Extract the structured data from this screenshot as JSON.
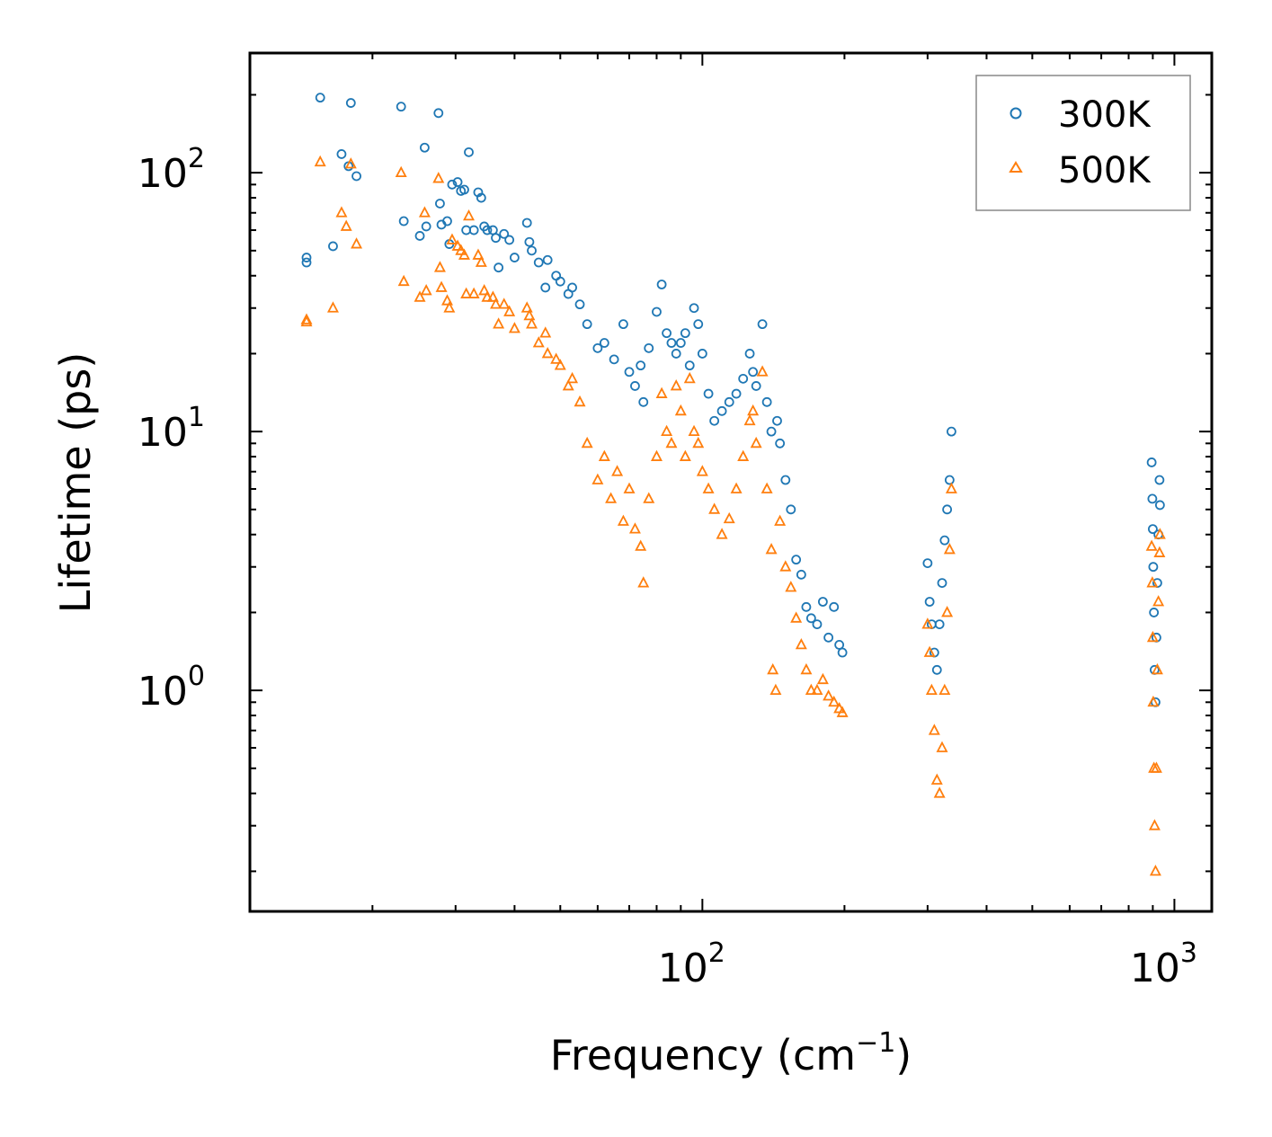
{
  "chart_data": {
    "type": "scatter",
    "title": "",
    "xlabel": "Frequency (cm",
    "xlabel_sup": "−1",
    "xlabel_suffix": ")",
    "ylabel": "Lifetime (ps)",
    "xscale": "log",
    "yscale": "log",
    "xlim": [
      11,
      1200
    ],
    "ylim": [
      0.14,
      290
    ],
    "x_major_ticks": [
      {
        "value": 100,
        "base": "10",
        "exp": "2"
      },
      {
        "value": 1000,
        "base": "10",
        "exp": "3"
      }
    ],
    "y_major_ticks": [
      {
        "value": 1,
        "base": "10",
        "exp": "0"
      },
      {
        "value": 10,
        "base": "10",
        "exp": "1"
      },
      {
        "value": 100,
        "base": "10",
        "exp": "2"
      }
    ],
    "legend": {
      "position": "top-right",
      "entries": [
        {
          "label": "300K",
          "marker": "circle",
          "color": "#1f77b4"
        },
        {
          "label": "500K",
          "marker": "triangle",
          "color": "#ff7f0e"
        }
      ]
    },
    "series": [
      {
        "name": "300K",
        "color": "#1f77b4",
        "marker": "circle",
        "points": [
          [
            14.5,
            47
          ],
          [
            14.5,
            45
          ],
          [
            15.5,
            195
          ],
          [
            16.5,
            52
          ],
          [
            17.2,
            118
          ],
          [
            17.8,
            106
          ],
          [
            18.0,
            186
          ],
          [
            18.5,
            97
          ],
          [
            23.0,
            180
          ],
          [
            23.3,
            65
          ],
          [
            25.2,
            57
          ],
          [
            25.8,
            125
          ],
          [
            26.0,
            62
          ],
          [
            27.6,
            170
          ],
          [
            27.8,
            76
          ],
          [
            28.0,
            63
          ],
          [
            28.8,
            65
          ],
          [
            29.1,
            53
          ],
          [
            29.5,
            90
          ],
          [
            30.3,
            92
          ],
          [
            30.8,
            85
          ],
          [
            31.3,
            86
          ],
          [
            31.6,
            60
          ],
          [
            32.0,
            120
          ],
          [
            32.8,
            60
          ],
          [
            33.5,
            84
          ],
          [
            34.0,
            80
          ],
          [
            34.5,
            62
          ],
          [
            35.0,
            60
          ],
          [
            36.0,
            60
          ],
          [
            36.5,
            56
          ],
          [
            37.0,
            43
          ],
          [
            38.0,
            58
          ],
          [
            39.0,
            55
          ],
          [
            40.0,
            47
          ],
          [
            42.5,
            64
          ],
          [
            43.0,
            54
          ],
          [
            43.5,
            50
          ],
          [
            45.0,
            45
          ],
          [
            46.5,
            36
          ],
          [
            47.0,
            46
          ],
          [
            49.0,
            40
          ],
          [
            50.0,
            38
          ],
          [
            52.0,
            34
          ],
          [
            53.0,
            36
          ],
          [
            55.0,
            31
          ],
          [
            57.0,
            26
          ],
          [
            60.0,
            21
          ],
          [
            62.0,
            22
          ],
          [
            65.0,
            19
          ],
          [
            68.0,
            26
          ],
          [
            70.0,
            17
          ],
          [
            72.0,
            15
          ],
          [
            74.0,
            18
          ],
          [
            75.0,
            13
          ],
          [
            77.0,
            21
          ],
          [
            80.0,
            29
          ],
          [
            82.0,
            37
          ],
          [
            84.0,
            24
          ],
          [
            86.0,
            22
          ],
          [
            88.0,
            20
          ],
          [
            90.0,
            22
          ],
          [
            92.0,
            24
          ],
          [
            94.0,
            18
          ],
          [
            96.0,
            30
          ],
          [
            98.0,
            26
          ],
          [
            100.0,
            20
          ],
          [
            103.0,
            14
          ],
          [
            106.0,
            11
          ],
          [
            110.0,
            12
          ],
          [
            114.0,
            13
          ],
          [
            118.0,
            14
          ],
          [
            122.0,
            16
          ],
          [
            126.0,
            20
          ],
          [
            128.0,
            17
          ],
          [
            130.0,
            15
          ],
          [
            134.0,
            26
          ],
          [
            137.0,
            13
          ],
          [
            140.0,
            10
          ],
          [
            144.0,
            11
          ],
          [
            146.0,
            9
          ],
          [
            150.0,
            6.5
          ],
          [
            154.0,
            5
          ],
          [
            158.0,
            3.2
          ],
          [
            162.0,
            2.8
          ],
          [
            166.0,
            2.1
          ],
          [
            170.0,
            1.9
          ],
          [
            175.0,
            1.8
          ],
          [
            180.0,
            2.2
          ],
          [
            185.0,
            1.6
          ],
          [
            190.0,
            2.1
          ],
          [
            195.0,
            1.5
          ],
          [
            198.0,
            1.4
          ],
          [
            300.0,
            3.1
          ],
          [
            303.0,
            2.2
          ],
          [
            306.0,
            1.8
          ],
          [
            310.0,
            1.4
          ],
          [
            314.0,
            1.2
          ],
          [
            318.0,
            1.8
          ],
          [
            322.0,
            2.6
          ],
          [
            326.0,
            3.8
          ],
          [
            330.0,
            5.0
          ],
          [
            334.0,
            6.5
          ],
          [
            337.0,
            10
          ],
          [
            895.0,
            7.6
          ],
          [
            898.0,
            5.5
          ],
          [
            900.0,
            4.2
          ],
          [
            902.0,
            3.0
          ],
          [
            905.0,
            2.0
          ],
          [
            908.0,
            1.2
          ],
          [
            912.0,
            0.9
          ],
          [
            916.0,
            1.6
          ],
          [
            920.0,
            2.6
          ],
          [
            925.0,
            4.0
          ],
          [
            930.0,
            6.5
          ],
          [
            932.0,
            5.2
          ]
        ]
      },
      {
        "name": "500K",
        "color": "#ff7f0e",
        "marker": "triangle",
        "points": [
          [
            14.5,
            27
          ],
          [
            14.5,
            26.5
          ],
          [
            15.5,
            110
          ],
          [
            16.5,
            30
          ],
          [
            17.2,
            70
          ],
          [
            17.6,
            62
          ],
          [
            18.0,
            108
          ],
          [
            18.5,
            53
          ],
          [
            23.0,
            100
          ],
          [
            23.3,
            38
          ],
          [
            25.2,
            33
          ],
          [
            25.8,
            70
          ],
          [
            26.0,
            35
          ],
          [
            27.6,
            95
          ],
          [
            27.8,
            43
          ],
          [
            28.0,
            36
          ],
          [
            28.8,
            32
          ],
          [
            29.1,
            30
          ],
          [
            29.5,
            55
          ],
          [
            30.3,
            52
          ],
          [
            30.8,
            50
          ],
          [
            31.3,
            48
          ],
          [
            31.6,
            34
          ],
          [
            32.0,
            68
          ],
          [
            32.8,
            34
          ],
          [
            33.5,
            48
          ],
          [
            34.0,
            45
          ],
          [
            34.5,
            35
          ],
          [
            35.0,
            33
          ],
          [
            36.0,
            33
          ],
          [
            36.5,
            31
          ],
          [
            37.0,
            26
          ],
          [
            38.0,
            31
          ],
          [
            39.0,
            29
          ],
          [
            40.0,
            25
          ],
          [
            42.5,
            30
          ],
          [
            43.0,
            28
          ],
          [
            43.5,
            26
          ],
          [
            45.0,
            22
          ],
          [
            46.5,
            24
          ],
          [
            47.0,
            20
          ],
          [
            49.0,
            19
          ],
          [
            50.0,
            18
          ],
          [
            52.0,
            15
          ],
          [
            53.0,
            16
          ],
          [
            55.0,
            13
          ],
          [
            57.0,
            9
          ],
          [
            60.0,
            6.5
          ],
          [
            62.0,
            8
          ],
          [
            64.0,
            5.5
          ],
          [
            66.0,
            7
          ],
          [
            68.0,
            4.5
          ],
          [
            70.0,
            6
          ],
          [
            72.0,
            4.2
          ],
          [
            74.0,
            3.6
          ],
          [
            75.0,
            2.6
          ],
          [
            77.0,
            5.5
          ],
          [
            80.0,
            8
          ],
          [
            82.0,
            14
          ],
          [
            84.0,
            10
          ],
          [
            86.0,
            9
          ],
          [
            88.0,
            15
          ],
          [
            90.0,
            12
          ],
          [
            92.0,
            8
          ],
          [
            94.0,
            16
          ],
          [
            96.0,
            10
          ],
          [
            98.0,
            9
          ],
          [
            100.0,
            7
          ],
          [
            103.0,
            6
          ],
          [
            106.0,
            5
          ],
          [
            110.0,
            4
          ],
          [
            114.0,
            4.6
          ],
          [
            118.0,
            6
          ],
          [
            122.0,
            8
          ],
          [
            126.0,
            11
          ],
          [
            128.0,
            12
          ],
          [
            130.0,
            9
          ],
          [
            134.0,
            17
          ],
          [
            137.0,
            6
          ],
          [
            140.0,
            3.5
          ],
          [
            141.0,
            1.2
          ],
          [
            143.0,
            1.0
          ],
          [
            146.0,
            4.5
          ],
          [
            150.0,
            3
          ],
          [
            154.0,
            2.5
          ],
          [
            158.0,
            1.9
          ],
          [
            162.0,
            1.5
          ],
          [
            166.0,
            1.2
          ],
          [
            170.0,
            1.0
          ],
          [
            175.0,
            1.0
          ],
          [
            180.0,
            1.1
          ],
          [
            185.0,
            0.95
          ],
          [
            190.0,
            0.9
          ],
          [
            195.0,
            0.85
          ],
          [
            198.0,
            0.82
          ],
          [
            300.0,
            1.8
          ],
          [
            303.0,
            1.4
          ],
          [
            306.0,
            1.0
          ],
          [
            310.0,
            0.7
          ],
          [
            314.0,
            0.45
          ],
          [
            318.0,
            0.4
          ],
          [
            322.0,
            0.6
          ],
          [
            326.0,
            1.0
          ],
          [
            330.0,
            2.0
          ],
          [
            334.0,
            3.5
          ],
          [
            337.0,
            6.0
          ],
          [
            895.0,
            3.6
          ],
          [
            898.0,
            2.6
          ],
          [
            900.0,
            1.6
          ],
          [
            902.0,
            0.9
          ],
          [
            905.0,
            0.5
          ],
          [
            908.0,
            0.3
          ],
          [
            912.0,
            0.2
          ],
          [
            916.0,
            0.5
          ],
          [
            920.0,
            1.2
          ],
          [
            925.0,
            2.2
          ],
          [
            930.0,
            3.4
          ],
          [
            932.0,
            4.0
          ]
        ]
      }
    ]
  }
}
